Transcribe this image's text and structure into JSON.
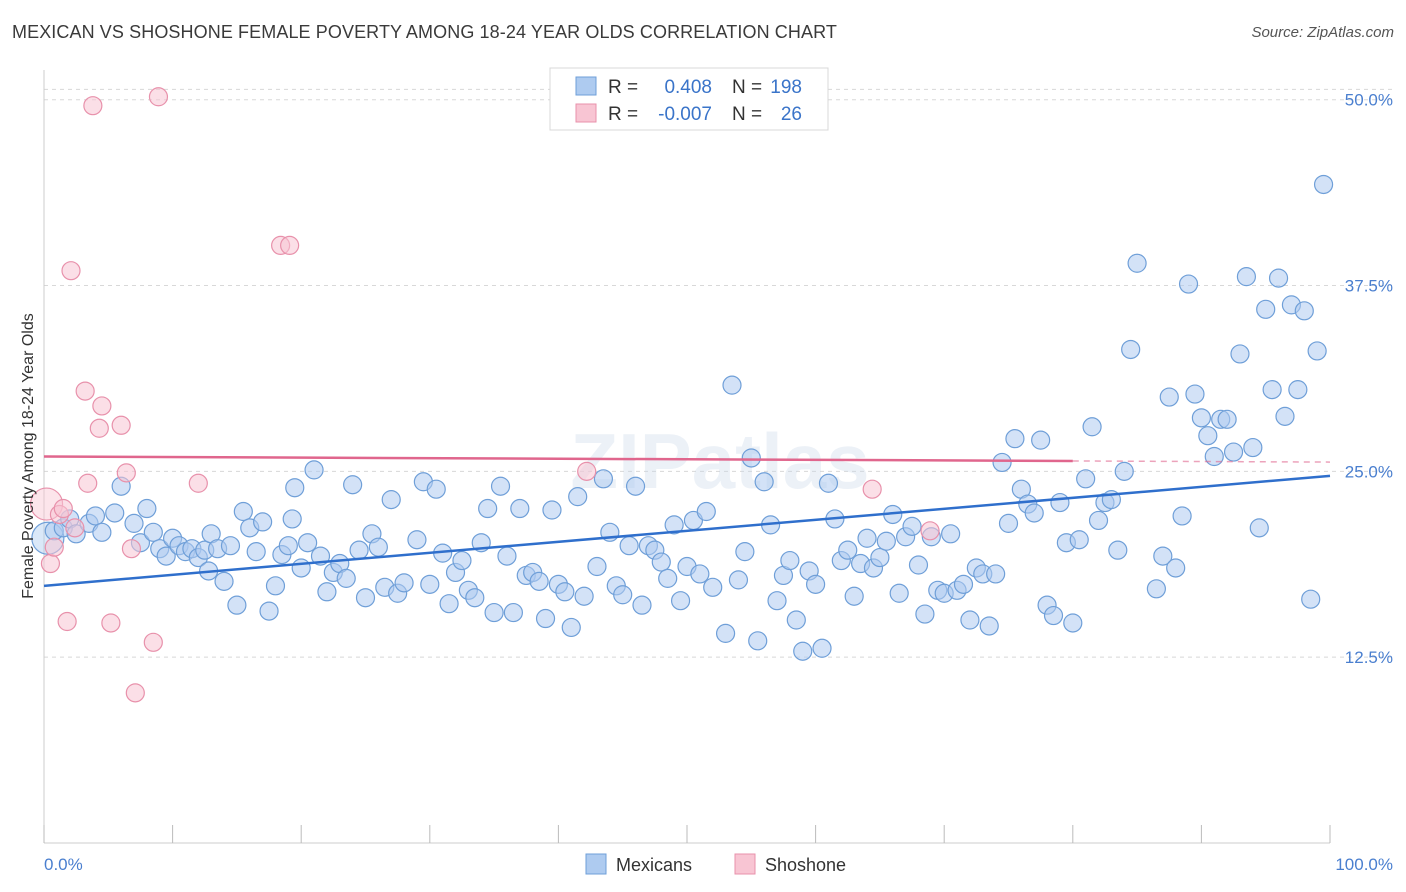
{
  "title": "MEXICAN VS SHOSHONE FEMALE POVERTY AMONG 18-24 YEAR OLDS CORRELATION CHART",
  "source": "Source: ZipAtlas.com",
  "watermark": "ZIPatlas",
  "colors": {
    "mexicans_fill": "#aecbf0",
    "mexicans_stroke": "#6f9fd8",
    "mexicans_line": "#2f6fcc",
    "shoshone_fill": "#f8c5d3",
    "shoshone_stroke": "#e891ab",
    "shoshone_line": "#e0668d",
    "axis_label": "#4a7fcf",
    "grid": "#d8d8d8"
  },
  "legend": {
    "r_label": "R =",
    "n_label": "N =",
    "rows": [
      {
        "series": "Mexicans",
        "r": "0.408",
        "n": "198"
      },
      {
        "series": "Shoshone",
        "r": "-0.007",
        "n": "26"
      }
    ]
  },
  "chart_data": {
    "type": "scatter",
    "title": "MEXICAN VS SHOSHONE FEMALE POVERTY AMONG 18-24 YEAR OLDS CORRELATION CHART",
    "xlabel": "",
    "ylabel": "Female Poverty Among 18-24 Year Olds",
    "xlim": [
      0,
      100
    ],
    "ylim": [
      0,
      52
    ],
    "x_tick_labels": [
      "0.0%",
      "100.0%"
    ],
    "y_ticks": [
      12.5,
      25.0,
      37.5,
      50.0
    ],
    "y_tick_labels": [
      "12.5%",
      "25.0%",
      "37.5%",
      "50.0%"
    ],
    "grid": "horizontal dashed",
    "legend_position": "top-center and bottom",
    "series": [
      {
        "name": "Mexicans",
        "trend": {
          "x": [
            0,
            100
          ],
          "y": [
            17.3,
            24.7
          ]
        },
        "points": [
          {
            "x": 0.3,
            "y": 20.5,
            "big": true
          },
          {
            "x": 0.8,
            "y": 21.0
          },
          {
            "x": 1.5,
            "y": 21.2
          },
          {
            "x": 2.0,
            "y": 21.8
          },
          {
            "x": 2.5,
            "y": 20.8
          },
          {
            "x": 3.5,
            "y": 21.5
          },
          {
            "x": 4.0,
            "y": 22.0
          },
          {
            "x": 4.5,
            "y": 20.9
          },
          {
            "x": 5.5,
            "y": 22.2
          },
          {
            "x": 6.0,
            "y": 24.0
          },
          {
            "x": 7.0,
            "y": 21.5
          },
          {
            "x": 7.5,
            "y": 20.2
          },
          {
            "x": 8.0,
            "y": 22.5
          },
          {
            "x": 8.5,
            "y": 20.9
          },
          {
            "x": 9.0,
            "y": 19.8
          },
          {
            "x": 9.5,
            "y": 19.3
          },
          {
            "x": 10.0,
            "y": 20.5
          },
          {
            "x": 10.5,
            "y": 20.0
          },
          {
            "x": 11.0,
            "y": 19.6
          },
          {
            "x": 11.5,
            "y": 19.8
          },
          {
            "x": 12.0,
            "y": 19.2
          },
          {
            "x": 12.5,
            "y": 19.7
          },
          {
            "x": 12.8,
            "y": 18.3
          },
          {
            "x": 13.0,
            "y": 20.8
          },
          {
            "x": 13.5,
            "y": 19.8
          },
          {
            "x": 14.0,
            "y": 17.6
          },
          {
            "x": 14.5,
            "y": 20.0
          },
          {
            "x": 15.0,
            "y": 16.0
          },
          {
            "x": 15.5,
            "y": 22.3
          },
          {
            "x": 16.0,
            "y": 21.2
          },
          {
            "x": 16.5,
            "y": 19.6
          },
          {
            "x": 17.0,
            "y": 21.6
          },
          {
            "x": 17.5,
            "y": 15.6
          },
          {
            "x": 18.0,
            "y": 17.3
          },
          {
            "x": 18.5,
            "y": 19.4
          },
          {
            "x": 19.0,
            "y": 20.0
          },
          {
            "x": 19.3,
            "y": 21.8
          },
          {
            "x": 19.5,
            "y": 23.9
          },
          {
            "x": 20.0,
            "y": 18.5
          },
          {
            "x": 20.5,
            "y": 20.2
          },
          {
            "x": 21.0,
            "y": 25.1
          },
          {
            "x": 21.5,
            "y": 19.3
          },
          {
            "x": 22.0,
            "y": 16.9
          },
          {
            "x": 22.5,
            "y": 18.2
          },
          {
            "x": 23.0,
            "y": 18.8
          },
          {
            "x": 23.5,
            "y": 17.8
          },
          {
            "x": 24.0,
            "y": 24.1
          },
          {
            "x": 24.5,
            "y": 19.7
          },
          {
            "x": 25.0,
            "y": 16.5
          },
          {
            "x": 25.5,
            "y": 20.8
          },
          {
            "x": 26.0,
            "y": 19.9
          },
          {
            "x": 26.5,
            "y": 17.2
          },
          {
            "x": 27.0,
            "y": 23.1
          },
          {
            "x": 27.5,
            "y": 16.8
          },
          {
            "x": 28.0,
            "y": 17.5
          },
          {
            "x": 29.0,
            "y": 20.4
          },
          {
            "x": 29.5,
            "y": 24.3
          },
          {
            "x": 30.0,
            "y": 17.4
          },
          {
            "x": 30.5,
            "y": 23.8
          },
          {
            "x": 31.0,
            "y": 19.5
          },
          {
            "x": 31.5,
            "y": 16.1
          },
          {
            "x": 32.0,
            "y": 18.2
          },
          {
            "x": 32.5,
            "y": 19.0
          },
          {
            "x": 33.0,
            "y": 17.0
          },
          {
            "x": 33.5,
            "y": 16.5
          },
          {
            "x": 34.0,
            "y": 20.2
          },
          {
            "x": 34.5,
            "y": 22.5
          },
          {
            "x": 35.0,
            "y": 15.5
          },
          {
            "x": 35.5,
            "y": 24.0
          },
          {
            "x": 36.0,
            "y": 19.3
          },
          {
            "x": 36.5,
            "y": 15.5
          },
          {
            "x": 37.0,
            "y": 22.5
          },
          {
            "x": 37.5,
            "y": 18.0
          },
          {
            "x": 38.0,
            "y": 18.2
          },
          {
            "x": 38.5,
            "y": 17.6
          },
          {
            "x": 39.0,
            "y": 15.1
          },
          {
            "x": 39.5,
            "y": 22.4
          },
          {
            "x": 40.0,
            "y": 17.4
          },
          {
            "x": 40.5,
            "y": 16.9
          },
          {
            "x": 41.0,
            "y": 14.5
          },
          {
            "x": 41.5,
            "y": 23.3
          },
          {
            "x": 42.0,
            "y": 16.6
          },
          {
            "x": 43.0,
            "y": 18.6
          },
          {
            "x": 43.5,
            "y": 24.5
          },
          {
            "x": 44.0,
            "y": 20.9
          },
          {
            "x": 44.5,
            "y": 17.3
          },
          {
            "x": 45.0,
            "y": 16.7
          },
          {
            "x": 45.5,
            "y": 20.0
          },
          {
            "x": 46.0,
            "y": 24.0
          },
          {
            "x": 46.5,
            "y": 16.0
          },
          {
            "x": 47.0,
            "y": 20.0
          },
          {
            "x": 47.5,
            "y": 19.7
          },
          {
            "x": 48.0,
            "y": 18.9
          },
          {
            "x": 48.5,
            "y": 17.8
          },
          {
            "x": 49.0,
            "y": 21.4
          },
          {
            "x": 49.5,
            "y": 16.3
          },
          {
            "x": 50.0,
            "y": 18.6
          },
          {
            "x": 50.5,
            "y": 21.7
          },
          {
            "x": 51.0,
            "y": 18.1
          },
          {
            "x": 51.5,
            "y": 22.3
          },
          {
            "x": 52.0,
            "y": 17.2
          },
          {
            "x": 53.0,
            "y": 14.1
          },
          {
            "x": 53.5,
            "y": 30.8
          },
          {
            "x": 54.0,
            "y": 17.7
          },
          {
            "x": 54.5,
            "y": 19.6
          },
          {
            "x": 55.0,
            "y": 25.9
          },
          {
            "x": 55.5,
            "y": 13.6
          },
          {
            "x": 56.0,
            "y": 24.3
          },
          {
            "x": 56.5,
            "y": 21.4
          },
          {
            "x": 57.0,
            "y": 16.3
          },
          {
            "x": 57.5,
            "y": 18.0
          },
          {
            "x": 58.0,
            "y": 19.0
          },
          {
            "x": 58.5,
            "y": 15.0
          },
          {
            "x": 59.0,
            "y": 12.9
          },
          {
            "x": 59.5,
            "y": 18.3
          },
          {
            "x": 60.0,
            "y": 17.4
          },
          {
            "x": 60.5,
            "y": 13.1
          },
          {
            "x": 61.0,
            "y": 24.2
          },
          {
            "x": 61.5,
            "y": 21.8
          },
          {
            "x": 62.0,
            "y": 19.0
          },
          {
            "x": 62.5,
            "y": 19.7
          },
          {
            "x": 63.0,
            "y": 16.6
          },
          {
            "x": 63.5,
            "y": 18.8
          },
          {
            "x": 64.0,
            "y": 20.5
          },
          {
            "x": 64.5,
            "y": 18.5
          },
          {
            "x": 65.0,
            "y": 19.2
          },
          {
            "x": 65.5,
            "y": 20.3
          },
          {
            "x": 66.0,
            "y": 22.1
          },
          {
            "x": 66.5,
            "y": 16.8
          },
          {
            "x": 67.0,
            "y": 20.6
          },
          {
            "x": 67.5,
            "y": 21.3
          },
          {
            "x": 68.0,
            "y": 18.7
          },
          {
            "x": 68.5,
            "y": 15.4
          },
          {
            "x": 69.0,
            "y": 20.6
          },
          {
            "x": 69.5,
            "y": 17.0
          },
          {
            "x": 70.0,
            "y": 16.8
          },
          {
            "x": 70.5,
            "y": 20.8
          },
          {
            "x": 71.0,
            "y": 17.0
          },
          {
            "x": 71.5,
            "y": 17.4
          },
          {
            "x": 72.0,
            "y": 15.0
          },
          {
            "x": 72.5,
            "y": 18.5
          },
          {
            "x": 73.0,
            "y": 18.1
          },
          {
            "x": 73.5,
            "y": 14.6
          },
          {
            "x": 74.0,
            "y": 18.1
          },
          {
            "x": 74.5,
            "y": 25.6
          },
          {
            "x": 75.0,
            "y": 21.5
          },
          {
            "x": 75.5,
            "y": 27.2
          },
          {
            "x": 76.0,
            "y": 23.8
          },
          {
            "x": 76.5,
            "y": 22.8
          },
          {
            "x": 77.0,
            "y": 22.2
          },
          {
            "x": 77.5,
            "y": 27.1
          },
          {
            "x": 78.0,
            "y": 16.0
          },
          {
            "x": 78.5,
            "y": 15.3
          },
          {
            "x": 79.0,
            "y": 22.9
          },
          {
            "x": 79.5,
            "y": 20.2
          },
          {
            "x": 80.0,
            "y": 14.8
          },
          {
            "x": 80.5,
            "y": 20.4
          },
          {
            "x": 81.0,
            "y": 24.5
          },
          {
            "x": 81.5,
            "y": 28.0
          },
          {
            "x": 82.0,
            "y": 21.7
          },
          {
            "x": 82.5,
            "y": 22.9
          },
          {
            "x": 83.0,
            "y": 23.1
          },
          {
            "x": 83.5,
            "y": 19.7
          },
          {
            "x": 84.0,
            "y": 25.0
          },
          {
            "x": 84.5,
            "y": 33.2
          },
          {
            "x": 85.0,
            "y": 39.0
          },
          {
            "x": 86.5,
            "y": 17.1
          },
          {
            "x": 87.0,
            "y": 19.3
          },
          {
            "x": 87.5,
            "y": 30.0
          },
          {
            "x": 88.0,
            "y": 18.5
          },
          {
            "x": 88.5,
            "y": 22.0
          },
          {
            "x": 89.0,
            "y": 37.6
          },
          {
            "x": 89.5,
            "y": 30.2
          },
          {
            "x": 90.0,
            "y": 28.6
          },
          {
            "x": 90.5,
            "y": 27.4
          },
          {
            "x": 91.0,
            "y": 26.0
          },
          {
            "x": 91.5,
            "y": 28.5
          },
          {
            "x": 92.0,
            "y": 28.5
          },
          {
            "x": 92.5,
            "y": 26.3
          },
          {
            "x": 93.0,
            "y": 32.9
          },
          {
            "x": 93.5,
            "y": 38.1
          },
          {
            "x": 94.0,
            "y": 26.6
          },
          {
            "x": 94.5,
            "y": 21.2
          },
          {
            "x": 95.0,
            "y": 35.9
          },
          {
            "x": 95.5,
            "y": 30.5
          },
          {
            "x": 96.0,
            "y": 38.0
          },
          {
            "x": 96.5,
            "y": 28.7
          },
          {
            "x": 97.0,
            "y": 36.2
          },
          {
            "x": 97.5,
            "y": 30.5
          },
          {
            "x": 98.0,
            "y": 35.8
          },
          {
            "x": 98.5,
            "y": 16.4
          },
          {
            "x": 99.0,
            "y": 33.1
          },
          {
            "x": 99.5,
            "y": 44.3
          }
        ]
      },
      {
        "name": "Shoshone",
        "trend": {
          "x": [
            0,
            80
          ],
          "y": [
            26.0,
            25.7
          ],
          "dashed_to": 100
        },
        "points": [
          {
            "x": 0.2,
            "y": 22.8,
            "big": true
          },
          {
            "x": 0.5,
            "y": 18.8
          },
          {
            "x": 0.8,
            "y": 19.9
          },
          {
            "x": 1.2,
            "y": 22.1
          },
          {
            "x": 1.5,
            "y": 22.5
          },
          {
            "x": 1.8,
            "y": 14.9
          },
          {
            "x": 2.1,
            "y": 38.5
          },
          {
            "x": 2.4,
            "y": 21.2
          },
          {
            "x": 3.2,
            "y": 30.4
          },
          {
            "x": 3.4,
            "y": 24.2
          },
          {
            "x": 3.8,
            "y": 49.6
          },
          {
            "x": 4.3,
            "y": 27.9
          },
          {
            "x": 4.5,
            "y": 29.4
          },
          {
            "x": 5.2,
            "y": 14.8
          },
          {
            "x": 6.0,
            "y": 28.1
          },
          {
            "x": 6.4,
            "y": 24.9
          },
          {
            "x": 6.8,
            "y": 19.8
          },
          {
            "x": 7.1,
            "y": 10.1
          },
          {
            "x": 8.5,
            "y": 13.5
          },
          {
            "x": 8.9,
            "y": 50.2
          },
          {
            "x": 12.0,
            "y": 24.2
          },
          {
            "x": 18.4,
            "y": 40.2
          },
          {
            "x": 19.1,
            "y": 40.2
          },
          {
            "x": 42.2,
            "y": 25.0
          },
          {
            "x": 64.4,
            "y": 23.8
          },
          {
            "x": 68.9,
            "y": 21.0
          }
        ]
      }
    ]
  }
}
